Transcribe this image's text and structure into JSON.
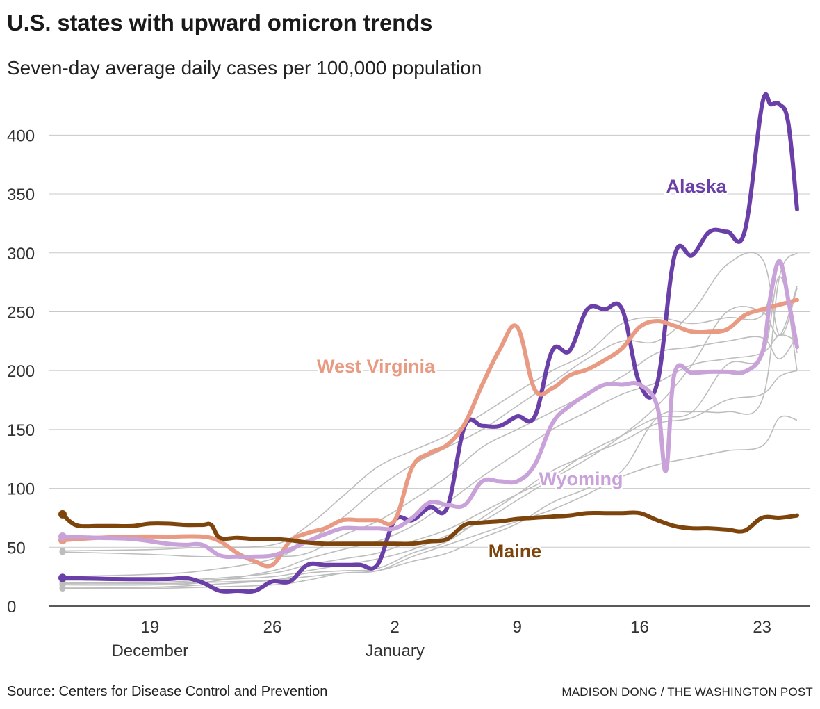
{
  "title": "U.S. states with upward omicron trends",
  "subtitle": "Seven-day average daily cases per 100,000 population",
  "source": "Source: Centers for Disease Control and Prevention",
  "credit": "MADISON DONG / THE WASHINGTON POST",
  "chart_data": {
    "type": "line",
    "x_unit": "days since Dec. 14",
    "xlim": [
      0,
      42
    ],
    "ylim": [
      0,
      425
    ],
    "yticks": [
      0,
      50,
      100,
      150,
      200,
      250,
      300,
      350,
      400
    ],
    "xticks": [
      {
        "x": 5,
        "label": "19",
        "sublabel": "December"
      },
      {
        "x": 12,
        "label": "26",
        "sublabel": ""
      },
      {
        "x": 19,
        "label": "2",
        "sublabel": "January"
      },
      {
        "x": 26,
        "label": "9",
        "sublabel": ""
      },
      {
        "x": 33,
        "label": "16",
        "sublabel": ""
      },
      {
        "x": 40,
        "label": "23",
        "sublabel": ""
      }
    ],
    "highlighted": [
      {
        "name": "Alaska",
        "color": "#6a3fa8",
        "label": "Alaska",
        "x": [
          0,
          3,
          6,
          7,
          8,
          9,
          10,
          11,
          12,
          13,
          14,
          15,
          16,
          17,
          18,
          19,
          20,
          21,
          22,
          23,
          24,
          25,
          26,
          27,
          28,
          29,
          30,
          31,
          32,
          33,
          34,
          35,
          36,
          37,
          38,
          39,
          40,
          40.5,
          41,
          41.5,
          42
        ],
        "values": [
          24,
          23,
          23,
          24,
          20,
          13,
          13,
          13,
          21,
          21,
          35,
          35,
          35,
          35,
          35,
          73,
          73,
          84,
          84,
          153,
          153,
          153,
          161,
          161,
          217,
          217,
          252,
          252,
          252,
          189,
          189,
          298,
          298,
          318,
          318,
          318,
          426,
          426,
          426,
          410,
          337
        ]
      },
      {
        "name": "West Virginia",
        "color": "#e89a82",
        "label": "West Virginia",
        "x": [
          0,
          2,
          4,
          6,
          8,
          9,
          10,
          11,
          12,
          13,
          14,
          15,
          16,
          17,
          18,
          19,
          20,
          21,
          22,
          23,
          24,
          25,
          26,
          27,
          28,
          29,
          30,
          31,
          32,
          33,
          34,
          35,
          36,
          37,
          38,
          39,
          40,
          41,
          42
        ],
        "values": [
          56,
          58,
          59,
          59,
          59,
          55,
          45,
          38,
          35,
          55,
          62,
          66,
          73,
          73,
          73,
          73,
          118,
          130,
          137,
          155,
          188,
          218,
          237,
          184,
          185,
          196,
          201,
          209,
          219,
          237,
          242,
          238,
          233,
          233,
          235,
          247,
          252,
          256,
          260
        ]
      },
      {
        "name": "Wyoming",
        "color": "#c8a2d8",
        "label": "Wyoming",
        "x": [
          0,
          2,
          4,
          6,
          7,
          8,
          9,
          10,
          11,
          12,
          13,
          14,
          15,
          16,
          17,
          18,
          19,
          20,
          21,
          22,
          23,
          24,
          25,
          26,
          27,
          28,
          29,
          30,
          31,
          32,
          33,
          34,
          34.5,
          35,
          36,
          37,
          38,
          39,
          40,
          40.5,
          41,
          41.5,
          42
        ],
        "values": [
          59,
          58,
          57,
          53,
          52,
          52,
          43,
          42,
          42,
          43,
          48,
          55,
          61,
          66,
          66,
          66,
          66,
          75,
          88,
          86,
          86,
          106,
          106,
          106,
          120,
          155,
          170,
          180,
          188,
          188,
          188,
          170,
          115,
          198,
          198,
          199,
          199,
          199,
          215,
          265,
          293,
          260,
          220
        ]
      },
      {
        "name": "Maine",
        "color": "#7d440c",
        "label": "Maine",
        "x": [
          0,
          0.5,
          1,
          2,
          3,
          4,
          5,
          6,
          7,
          8,
          8.5,
          9,
          10,
          11,
          12,
          13,
          14,
          15,
          16,
          17,
          18,
          19,
          20,
          21,
          22,
          23,
          24,
          25,
          26,
          27,
          28,
          29,
          30,
          31,
          32,
          33,
          34,
          35,
          36,
          37,
          38,
          39,
          40,
          41,
          42
        ],
        "values": [
          78,
          71,
          68,
          68,
          68,
          68,
          70,
          70,
          69,
          69,
          69,
          58,
          58,
          57,
          57,
          56,
          54,
          53,
          53,
          53,
          53,
          53,
          53,
          55,
          57,
          69,
          71,
          72,
          74,
          75,
          76,
          77,
          79,
          79,
          79,
          79,
          73,
          68,
          66,
          66,
          65,
          64,
          75,
          75,
          77
        ]
      }
    ],
    "background_states": [
      {
        "x": [
          0,
          5,
          8,
          12,
          14,
          16,
          18,
          20,
          22,
          24,
          26,
          28,
          30,
          32,
          34,
          36,
          38,
          40,
          41,
          42
        ],
        "values": [
          47,
          48,
          50,
          52,
          68,
          93,
          118,
          132,
          145,
          163,
          182,
          200,
          215,
          240,
          245,
          240,
          245,
          247,
          290,
          200
        ]
      },
      {
        "x": [
          0,
          5,
          8,
          12,
          14,
          16,
          18,
          20,
          22,
          24,
          26,
          28,
          30,
          32,
          34,
          36,
          38,
          40,
          41,
          42
        ],
        "values": [
          25,
          27,
          30,
          40,
          55,
          75,
          100,
          120,
          135,
          150,
          170,
          190,
          210,
          225,
          225,
          250,
          290,
          295,
          230,
          270
        ]
      },
      {
        "x": [
          0,
          5,
          8,
          12,
          14,
          16,
          18,
          20,
          22,
          24,
          26,
          28,
          30,
          32,
          34,
          36,
          38,
          40,
          41,
          42
        ],
        "values": [
          46,
          44,
          42,
          42,
          45,
          60,
          72,
          90,
          110,
          135,
          150,
          165,
          180,
          195,
          215,
          220,
          225,
          228,
          210,
          230
        ]
      },
      {
        "x": [
          0,
          5,
          8,
          12,
          14,
          16,
          18,
          20,
          22,
          24,
          26,
          28,
          30,
          32,
          34,
          36,
          38,
          40,
          41,
          42
        ],
        "values": [
          18,
          18,
          20,
          30,
          40,
          48,
          55,
          68,
          88,
          110,
          130,
          150,
          165,
          180,
          190,
          205,
          210,
          215,
          230,
          225
        ]
      },
      {
        "x": [
          0,
          5,
          8,
          12,
          14,
          16,
          18,
          20,
          22,
          24,
          26,
          28,
          30,
          32,
          34,
          36,
          38,
          40,
          41,
          42
        ],
        "values": [
          16,
          16,
          18,
          22,
          28,
          30,
          32,
          45,
          55,
          75,
          95,
          115,
          128,
          140,
          155,
          160,
          175,
          180,
          195,
          200
        ]
      },
      {
        "x": [
          0,
          5,
          8,
          12,
          14,
          16,
          18,
          20,
          22,
          24,
          26,
          28,
          30,
          32,
          34,
          36,
          38,
          40,
          41,
          42
        ],
        "values": [
          20,
          20,
          22,
          25,
          30,
          35,
          40,
          48,
          60,
          72,
          90,
          108,
          125,
          145,
          170,
          205,
          250,
          250,
          230,
          272
        ]
      },
      {
        "x": [
          0,
          5,
          8,
          12,
          14,
          16,
          18,
          20,
          22,
          24,
          26,
          28,
          30,
          32,
          34,
          36,
          38,
          40,
          41,
          42
        ],
        "values": [
          15,
          15,
          16,
          18,
          22,
          28,
          30,
          42,
          52,
          62,
          72,
          82,
          95,
          110,
          120,
          126,
          132,
          136,
          160,
          158
        ]
      },
      {
        "x": [
          0,
          5,
          8,
          12,
          14,
          16,
          18,
          20,
          22,
          24,
          26,
          28,
          30,
          32,
          34,
          36,
          38,
          40,
          41,
          42
        ],
        "values": [
          22,
          22,
          23,
          28,
          35,
          40,
          45,
          55,
          65,
          80,
          95,
          110,
          130,
          145,
          160,
          165,
          205,
          212,
          280,
          215
        ]
      },
      {
        "x": [
          0,
          5,
          8,
          12,
          14,
          16,
          18,
          20,
          22,
          24,
          26,
          28,
          30,
          32,
          34,
          36,
          38,
          40,
          41,
          42
        ],
        "values": [
          19,
          19,
          20,
          22,
          25,
          28,
          30,
          38,
          45,
          58,
          70,
          88,
          100,
          115,
          160,
          165,
          165,
          175,
          280,
          300
        ]
      }
    ]
  }
}
